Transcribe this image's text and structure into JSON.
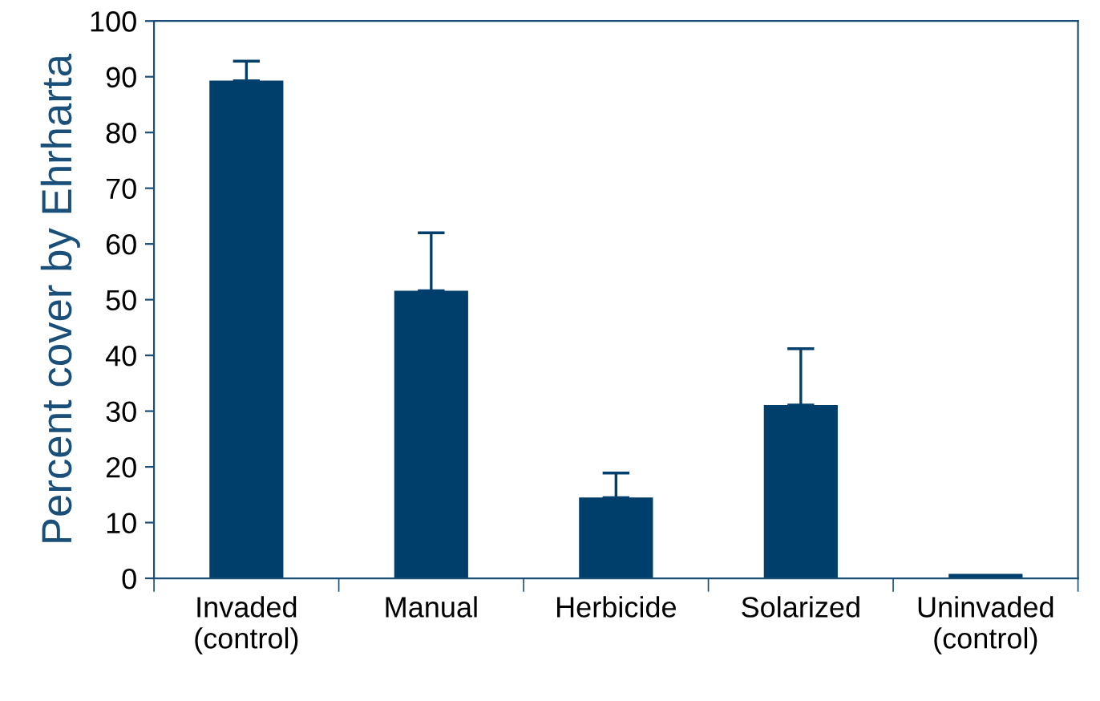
{
  "chart_data": {
    "type": "bar",
    "ylabel": "Percent cover by Ehrharta",
    "categories": [
      "Invaded\n(control)",
      "Manual",
      "Herbicide",
      "Solarized",
      "Uninvaded\n(control)"
    ],
    "values": [
      89.3,
      51.6,
      14.5,
      31.1,
      0.8
    ],
    "errors": [
      [
        89.3,
        92.8
      ],
      [
        51.6,
        62
      ],
      [
        14.5,
        18.9
      ],
      [
        31.1,
        41.2
      ],
      null
    ],
    "color": "#003f6b",
    "ylim": [
      0,
      100
    ],
    "yticks": [
      0,
      10,
      20,
      30,
      40,
      50,
      60,
      70,
      80,
      90,
      100
    ],
    "grid": false
  }
}
